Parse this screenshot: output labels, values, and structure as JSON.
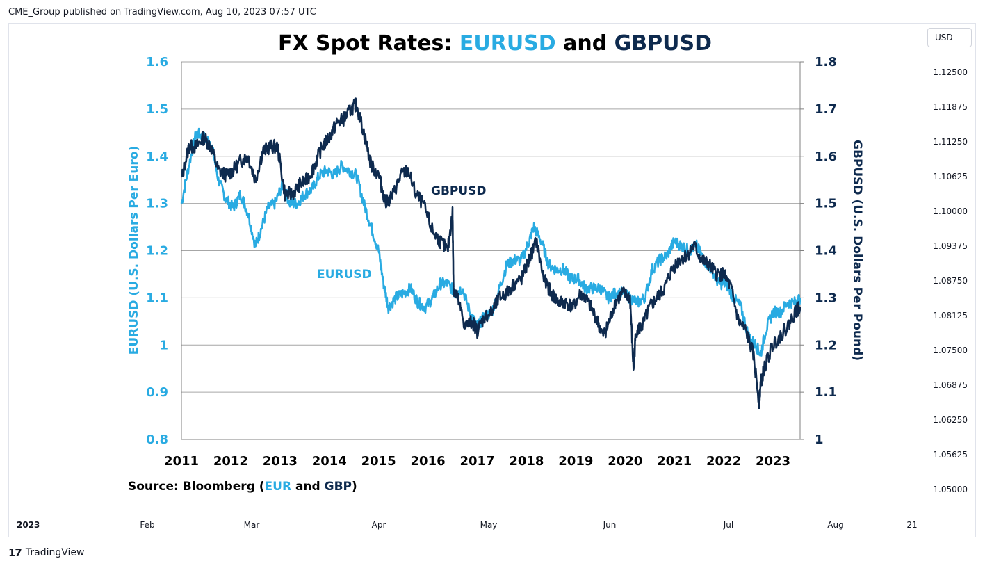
{
  "header": {
    "published": "CME_Group published on TradingView.com, Aug 10, 2023 07:57 UTC"
  },
  "currency_button": "USD",
  "price_scale": [
    "1.12500",
    "1.11875",
    "1.11250",
    "1.10625",
    "1.10000",
    "1.09375",
    "1.08750",
    "1.08125",
    "1.07500",
    "1.06875",
    "1.06250",
    "1.05625",
    "1.05000"
  ],
  "time_axis": [
    {
      "label": "2023",
      "year": true
    },
    {
      "label": "Feb"
    },
    {
      "label": "Mar"
    },
    {
      "label": "Apr"
    },
    {
      "label": "May"
    },
    {
      "label": "Jun"
    },
    {
      "label": "Jul"
    },
    {
      "label": "Aug"
    },
    {
      "label": "21"
    }
  ],
  "footer": {
    "brand": "TradingView",
    "logo_glyph": "17"
  },
  "colors": {
    "eur": "#29abe2",
    "gbp": "#0e2a4e",
    "grid": "#a6a6a6",
    "axis": "#808080"
  },
  "chart_data": {
    "type": "line",
    "title": {
      "prefix": "FX Spot Rates: ",
      "series1": "EURUSD",
      "conj": " and ",
      "series2": "GBPUSD"
    },
    "source": {
      "prefix": "Source: Bloomberg (",
      "eur": "EUR",
      "and": " and ",
      "gbp": "GBP",
      "suffix": ")"
    },
    "left_axis": {
      "label": "EURUSD (U.S. Dollars Per Euro)",
      "range": [
        0.8,
        1.6
      ],
      "ticks": [
        "1.6",
        "1.5",
        "1.4",
        "1.3",
        "1.2",
        "1.1",
        "1",
        "0.9",
        "0.8"
      ]
    },
    "right_axis": {
      "label": "GBPUSD (U.S. Dollars Per Pound)",
      "range": [
        1.0,
        1.8
      ],
      "ticks": [
        "1.8",
        "1.7",
        "1.6",
        "1.5",
        "1.4",
        "1.3",
        "1.2",
        "1.1",
        "1"
      ]
    },
    "x_ticks": [
      "2011",
      "2012",
      "2013",
      "2014",
      "2015",
      "2016",
      "2017",
      "2018",
      "2019",
      "2020",
      "2021",
      "2022",
      "2023"
    ],
    "x_range": [
      2011.0,
      2023.55
    ],
    "series": [
      {
        "name": "EURUSD",
        "axis": "left",
        "x": [
          2011.0,
          2011.15,
          2011.3,
          2011.45,
          2011.6,
          2011.75,
          2011.9,
          2012.05,
          2012.2,
          2012.35,
          2012.5,
          2012.6,
          2012.75,
          2012.9,
          2013.05,
          2013.2,
          2013.35,
          2013.5,
          2013.65,
          2013.8,
          2013.95,
          2014.1,
          2014.25,
          2014.4,
          2014.55,
          2014.7,
          2014.85,
          2015.0,
          2015.1,
          2015.2,
          2015.35,
          2015.5,
          2015.65,
          2015.8,
          2015.95,
          2016.1,
          2016.25,
          2016.4,
          2016.55,
          2016.7,
          2016.85,
          2017.0,
          2017.15,
          2017.3,
          2017.45,
          2017.6,
          2017.75,
          2017.9,
          2018.05,
          2018.15,
          2018.3,
          2018.45,
          2018.6,
          2018.75,
          2018.9,
          2019.05,
          2019.2,
          2019.35,
          2019.5,
          2019.65,
          2019.8,
          2019.95,
          2020.1,
          2020.25,
          2020.4,
          2020.55,
          2020.7,
          2020.85,
          2021.0,
          2021.15,
          2021.3,
          2021.45,
          2021.6,
          2021.75,
          2021.9,
          2022.05,
          2022.2,
          2022.35,
          2022.5,
          2022.65,
          2022.75,
          2022.85,
          2023.0,
          2023.15,
          2023.3,
          2023.45,
          2023.55
        ],
        "values": [
          1.3,
          1.38,
          1.45,
          1.44,
          1.43,
          1.35,
          1.31,
          1.29,
          1.32,
          1.28,
          1.21,
          1.24,
          1.29,
          1.3,
          1.34,
          1.3,
          1.3,
          1.32,
          1.33,
          1.36,
          1.37,
          1.36,
          1.38,
          1.37,
          1.36,
          1.3,
          1.25,
          1.2,
          1.13,
          1.08,
          1.1,
          1.11,
          1.12,
          1.09,
          1.08,
          1.1,
          1.13,
          1.13,
          1.11,
          1.12,
          1.07,
          1.04,
          1.06,
          1.07,
          1.12,
          1.17,
          1.18,
          1.18,
          1.22,
          1.25,
          1.22,
          1.17,
          1.16,
          1.16,
          1.14,
          1.14,
          1.12,
          1.12,
          1.12,
          1.1,
          1.11,
          1.11,
          1.1,
          1.09,
          1.1,
          1.16,
          1.18,
          1.19,
          1.22,
          1.21,
          1.2,
          1.21,
          1.18,
          1.16,
          1.13,
          1.13,
          1.1,
          1.08,
          1.02,
          1.0,
          0.98,
          1.03,
          1.07,
          1.07,
          1.09,
          1.09,
          1.1
        ]
      },
      {
        "name": "GBPUSD",
        "axis": "right",
        "x": [
          2011.0,
          2011.15,
          2011.3,
          2011.45,
          2011.6,
          2011.75,
          2011.9,
          2012.05,
          2012.2,
          2012.35,
          2012.5,
          2012.65,
          2012.8,
          2012.95,
          2013.1,
          2013.25,
          2013.4,
          2013.55,
          2013.7,
          2013.85,
          2014.0,
          2014.15,
          2014.3,
          2014.45,
          2014.55,
          2014.7,
          2014.85,
          2015.0,
          2015.15,
          2015.3,
          2015.45,
          2015.6,
          2015.75,
          2015.9,
          2016.1,
          2016.25,
          2016.4,
          2016.5,
          2016.52,
          2016.6,
          2016.75,
          2016.9,
          2017.0,
          2017.15,
          2017.3,
          2017.45,
          2017.6,
          2017.75,
          2017.9,
          2018.05,
          2018.2,
          2018.35,
          2018.5,
          2018.65,
          2018.8,
          2018.95,
          2019.1,
          2019.25,
          2019.4,
          2019.55,
          2019.65,
          2019.8,
          2019.95,
          2020.1,
          2020.17,
          2020.22,
          2020.35,
          2020.5,
          2020.65,
          2020.8,
          2020.95,
          2021.1,
          2021.25,
          2021.4,
          2021.55,
          2021.7,
          2021.85,
          2022.0,
          2022.15,
          2022.3,
          2022.45,
          2022.6,
          2022.72,
          2022.75,
          2022.85,
          2023.0,
          2023.15,
          2023.3,
          2023.45,
          2023.55
        ],
        "values": [
          1.55,
          1.62,
          1.62,
          1.64,
          1.62,
          1.57,
          1.56,
          1.57,
          1.59,
          1.6,
          1.55,
          1.61,
          1.62,
          1.62,
          1.52,
          1.52,
          1.54,
          1.55,
          1.58,
          1.62,
          1.64,
          1.67,
          1.68,
          1.7,
          1.71,
          1.65,
          1.58,
          1.56,
          1.5,
          1.52,
          1.56,
          1.57,
          1.52,
          1.5,
          1.44,
          1.42,
          1.4,
          1.48,
          1.32,
          1.3,
          1.24,
          1.25,
          1.23,
          1.26,
          1.27,
          1.3,
          1.31,
          1.33,
          1.34,
          1.38,
          1.42,
          1.34,
          1.31,
          1.29,
          1.29,
          1.28,
          1.31,
          1.29,
          1.26,
          1.22,
          1.24,
          1.29,
          1.31,
          1.3,
          1.15,
          1.23,
          1.24,
          1.28,
          1.3,
          1.32,
          1.36,
          1.38,
          1.39,
          1.41,
          1.38,
          1.37,
          1.35,
          1.35,
          1.32,
          1.25,
          1.23,
          1.18,
          1.08,
          1.12,
          1.16,
          1.2,
          1.22,
          1.24,
          1.27,
          1.28
        ]
      }
    ],
    "annotations": [
      {
        "text": "GBPUSD",
        "x": 2016.0,
        "y_right": 1.53
      },
      {
        "text": "EURUSD",
        "x": 2014.6,
        "y_left": 1.15
      }
    ]
  }
}
